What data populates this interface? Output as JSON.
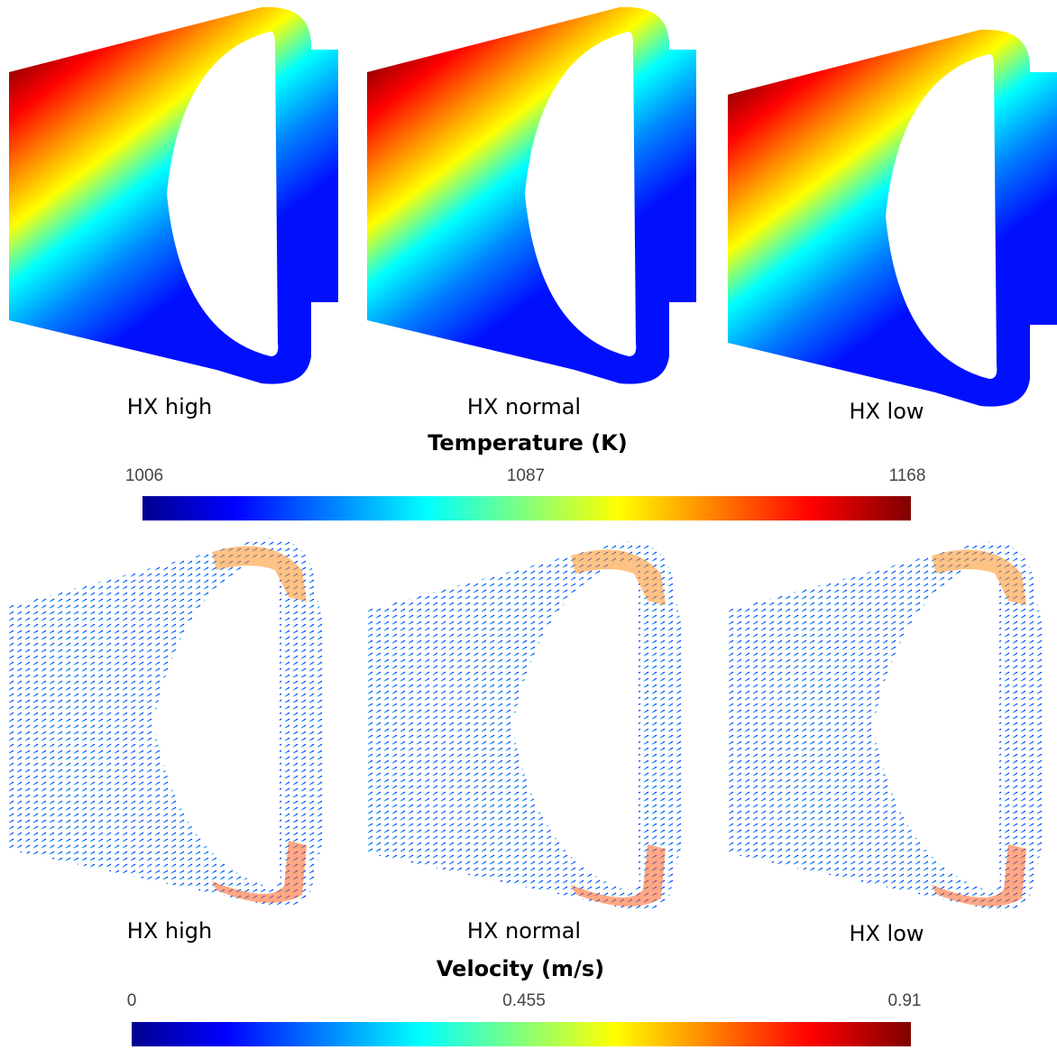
{
  "temperature": {
    "panels": [
      "HX high",
      "HX normal",
      "HX low"
    ],
    "colorbar": {
      "title": "Temperature (K)",
      "ticks": [
        "1006",
        "1087",
        "1168"
      ]
    }
  },
  "velocity": {
    "panels": [
      "HX high",
      "HX normal",
      "HX low"
    ],
    "colorbar": {
      "title": "Velocity (m/s)",
      "ticks": [
        "0",
        "0.455",
        "0.91"
      ]
    }
  }
}
